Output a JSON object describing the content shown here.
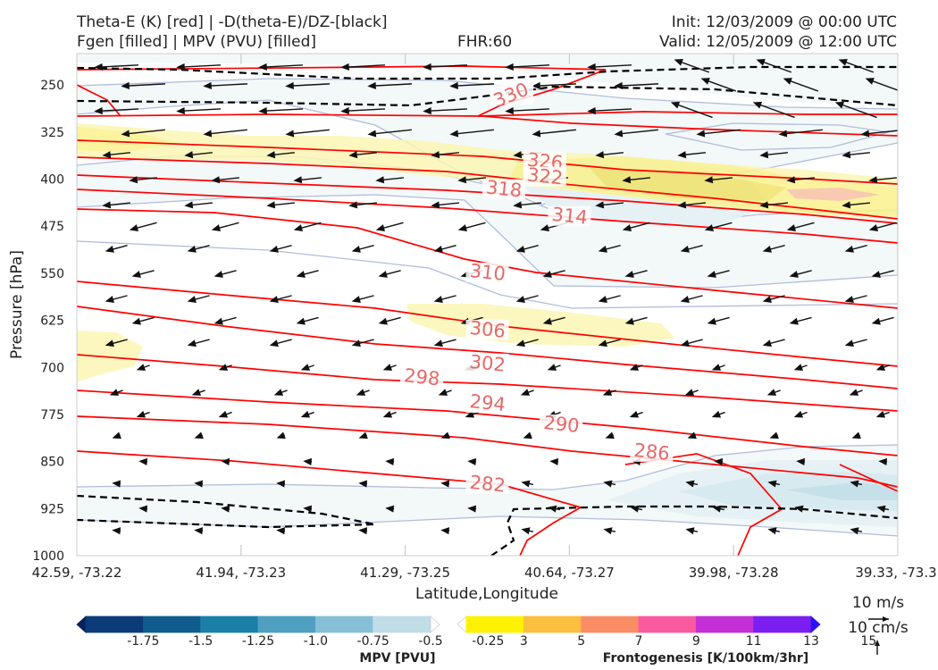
{
  "header": {
    "title_line1": "Theta-E (K) [red] | -D(theta-E)/DZ-[black]",
    "title_line2": "Fgen [filled] | MPV (PVU) [filled]",
    "fhr": "FHR:60",
    "init": "Init: 12/03/2009 @ 00:00 UTC",
    "valid": "Valid: 12/05/2009 @ 12:00 UTC"
  },
  "chart_data": {
    "type": "cross-section",
    "xlabel": "Latitude,Longitude",
    "ylabel": "Pressure [hPa]",
    "x_ticks": [
      "42.59, -73.22",
      "41.94, -73.23",
      "41.29, -73.25",
      "40.64, -73.27",
      "39.98, -73.28",
      "39.33, -73.3"
    ],
    "y_ticks": [
      250,
      325,
      400,
      475,
      550,
      625,
      700,
      775,
      850,
      925,
      1000
    ],
    "ylim": [
      1000,
      200
    ],
    "theta_e_contours": {
      "color": "#ff0000",
      "labels": [
        {
          "level": 330,
          "x": 0.53,
          "p": 270
        },
        {
          "level": 326,
          "x": 0.57,
          "p": 376
        },
        {
          "level": 322,
          "x": 0.57,
          "p": 400
        },
        {
          "level": 318,
          "x": 0.52,
          "p": 420
        },
        {
          "level": 314,
          "x": 0.6,
          "p": 463
        },
        {
          "level": 310,
          "x": 0.5,
          "p": 553
        },
        {
          "level": 306,
          "x": 0.5,
          "p": 644
        },
        {
          "level": 302,
          "x": 0.5,
          "p": 698
        },
        {
          "level": 298,
          "x": 0.42,
          "p": 720
        },
        {
          "level": 294,
          "x": 0.5,
          "p": 761
        },
        {
          "level": 290,
          "x": 0.59,
          "p": 795
        },
        {
          "level": 286,
          "x": 0.7,
          "p": 839
        },
        {
          "level": 282,
          "x": 0.5,
          "p": 890
        }
      ]
    },
    "colorbars": [
      {
        "title": "MPV [PVU]",
        "colors": [
          "#08205e",
          "#0b3b78",
          "#115c8e",
          "#1a80a8",
          "#4e9fc0",
          "#85c0d6",
          "#c0dde8",
          "#ffffff"
        ],
        "tick_labels": [
          "-1.75",
          "-1.5",
          "-1.25",
          "-1.0",
          "-0.75",
          "-0.5",
          "-0.25"
        ]
      },
      {
        "title": "Frontogenesis [K/100km/3hr]",
        "colors": [
          "#ffffff",
          "#fff200",
          "#fcbe3e",
          "#fb8d66",
          "#fa5aa0",
          "#c42fd6",
          "#7b1ff0",
          "#2a14f5"
        ],
        "tick_labels": [
          "3",
          "5",
          "7",
          "9",
          "11",
          "13",
          "15"
        ]
      }
    ],
    "wind_reference": {
      "horizontal": "10 m/s",
      "vertical": "10 cm/s"
    }
  }
}
